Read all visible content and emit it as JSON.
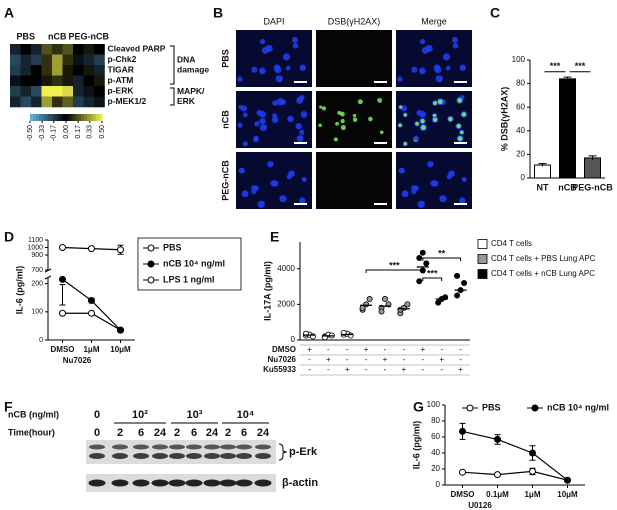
{
  "panel_labels": [
    "A",
    "B",
    "C",
    "D",
    "E",
    "F",
    "G"
  ],
  "microscopy": {
    "columns": [
      "DAPI",
      "DSB(γH2AX)",
      "Merge"
    ],
    "rows": [
      "PBS",
      "nCB",
      "PEG-nCB"
    ]
  },
  "western_blot": {
    "dose_label": "nCB (ng/ml)",
    "doses": [
      "0",
      "10²",
      "10³",
      "10⁴"
    ],
    "time_label": "Time(hour)",
    "times": [
      "0",
      "2",
      "6",
      "24",
      "2",
      "6",
      "24",
      "2",
      "6",
      "24"
    ],
    "bands": [
      "p-Erk",
      "β-actin"
    ]
  },
  "chart_data": [
    {
      "type": "heatmap",
      "column_groups": [
        "PBS",
        "nCB",
        "PEG-nCB"
      ],
      "rows": [
        "Cleaved PARP",
        "p-Chk2",
        "TIGAR",
        "p-ATM",
        "p-ERK",
        "p-MEK1/2"
      ],
      "row_groups": [
        [
          "DNA",
          "damage"
        ],
        [
          "MAPK/",
          "ERK"
        ]
      ],
      "values": [
        [
          -0.1,
          0,
          -0.1,
          0.17,
          0.1,
          0.17,
          0,
          0.05,
          0
        ],
        [
          -0.2,
          -0.1,
          -0.17,
          0.1,
          0.33,
          0.1,
          -0.05,
          -0.1,
          -0.17
        ],
        [
          -0.17,
          -0.1,
          0,
          0.1,
          0.33,
          0.05,
          0,
          0.05,
          -0.1
        ],
        [
          -0.05,
          0,
          0,
          0.05,
          0.1,
          0.05,
          -0.1,
          0,
          0.05
        ],
        [
          -0.17,
          -0.1,
          -0.2,
          0.5,
          0.5,
          0.45,
          -0.1,
          -0.05,
          0
        ],
        [
          -0.1,
          -0.2,
          -0.1,
          0.33,
          0.1,
          0.2,
          -0.17,
          -0.1,
          -0.05
        ]
      ],
      "colormap": [
        "#64b4e6",
        "#000000",
        "#f0f050"
      ],
      "colorbar_ticks": [
        {
          "value": -0.5,
          "label": "-0.50"
        },
        {
          "value": -0.33,
          "label": "-0.33"
        },
        {
          "value": -0.17,
          "label": "-0.17"
        },
        {
          "value": 0,
          "label": "0.00"
        },
        {
          "value": 0.17,
          "label": "0.17"
        },
        {
          "value": 0.33,
          "label": "0.33"
        },
        {
          "value": 0.5,
          "label": "0.50"
        }
      ]
    },
    {
      "type": "bar",
      "ylabel": "% DSB(γH2AX)",
      "categories": [
        "NT",
        "nCB",
        "PEG-nCB"
      ],
      "values": [
        11,
        84,
        17
      ],
      "errors": [
        1.2,
        1.5,
        1.8
      ],
      "colors": [
        "#ffffff",
        "#000000",
        "#555555"
      ],
      "ylim": [
        0,
        100
      ],
      "yticks": [
        0,
        20,
        40,
        60,
        80,
        100
      ],
      "annotations": [
        "***",
        "***"
      ]
    },
    {
      "type": "line",
      "ylabel": "IL-6 (pg/ml)",
      "xlabel": "Nu7026",
      "categories": [
        "DMSO",
        "1μM",
        "10μM"
      ],
      "series": [
        {
          "name": "PBS",
          "color": "#000000",
          "marker": "open",
          "values": [
            95,
            95,
            35
          ],
          "errors": [
            5,
            5,
            3
          ]
        },
        {
          "name": "nCB 10⁴ ng/ml",
          "color": "#000000",
          "marker": "filled",
          "values": [
            215,
            140,
            35
          ],
          "errors": [
            18,
            8,
            4
          ]
        },
        {
          "name": "LPS 1 ng/ml",
          "color": "#000000",
          "marker": "open",
          "values": [
            1000,
            985,
            970
          ],
          "errors": [
            15,
            15,
            60
          ]
        }
      ],
      "ylim": [
        0,
        1100
      ],
      "ybreak": [
        220,
        700
      ],
      "yticks": [
        0,
        100,
        200,
        700,
        900,
        1000,
        1100
      ],
      "legend": "right"
    },
    {
      "type": "dotplot",
      "ylabel": "IL-17A (pg/ml)",
      "ylim": [
        0,
        5500
      ],
      "yticks": [
        0,
        2000,
        4000
      ],
      "series": [
        {
          "name": "CD4 T cells",
          "color": "#ffffff",
          "values": [
            [
              250,
              300,
              200,
              350
            ],
            [
              200,
              300,
              250,
              150
            ],
            [
              300,
              350,
              250,
              400
            ]
          ],
          "means": [
            280,
            230,
            310
          ]
        },
        {
          "name": "CD4 T cells + PBS Lung APC",
          "color": "#999999",
          "values": [
            [
              1700,
              2000,
              2300,
              1800
            ],
            [
              1800,
              2300,
              2000,
              1600
            ],
            [
              1500,
              1800,
              2000,
              1700
            ]
          ],
          "means": [
            1950,
            1900,
            1750
          ]
        },
        {
          "name": "CD4 T cells + nCB Lung APC",
          "color": "#000000",
          "values": [
            [
              3300,
              3900,
              4300,
              4600,
              4900
            ],
            [
              2100,
              2300,
              2400
            ],
            [
              2500,
              2800,
              3200,
              3600
            ]
          ],
          "means": [
            4100,
            2300,
            2800
          ]
        }
      ],
      "conditions": {
        "rows": [
          "DMSO",
          "Nu7026",
          "Ku55933"
        ],
        "values": [
          [
            "+",
            "-",
            "-",
            "+",
            "-",
            "-",
            "+",
            "-",
            "-"
          ],
          [
            "-",
            "+",
            "-",
            "-",
            "+",
            "-",
            "-",
            "+",
            "-"
          ],
          [
            "-",
            "-",
            "+",
            "-",
            "-",
            "+",
            "-",
            "-",
            "+"
          ]
        ]
      },
      "annotations": [
        "***",
        "***",
        "**"
      ]
    },
    {
      "type": "line",
      "ylabel": "IL-6 (pg/ml)",
      "xlabel": "U0126",
      "categories": [
        "DMSO",
        "0.1μM",
        "1μM",
        "10μM"
      ],
      "series": [
        {
          "name": "PBS",
          "color": "#000000",
          "marker": "open",
          "values": [
            16,
            13,
            17,
            6
          ],
          "errors": [
            1,
            1,
            4,
            1
          ]
        },
        {
          "name": "nCB 10⁴ ng/ml",
          "color": "#000000",
          "marker": "filled",
          "values": [
            67,
            57,
            40,
            6
          ],
          "errors": [
            10,
            6,
            9,
            1
          ]
        }
      ],
      "ylim": [
        0,
        100
      ],
      "yticks": [
        0,
        20,
        40,
        60,
        80,
        100
      ],
      "legend": "top"
    }
  ]
}
